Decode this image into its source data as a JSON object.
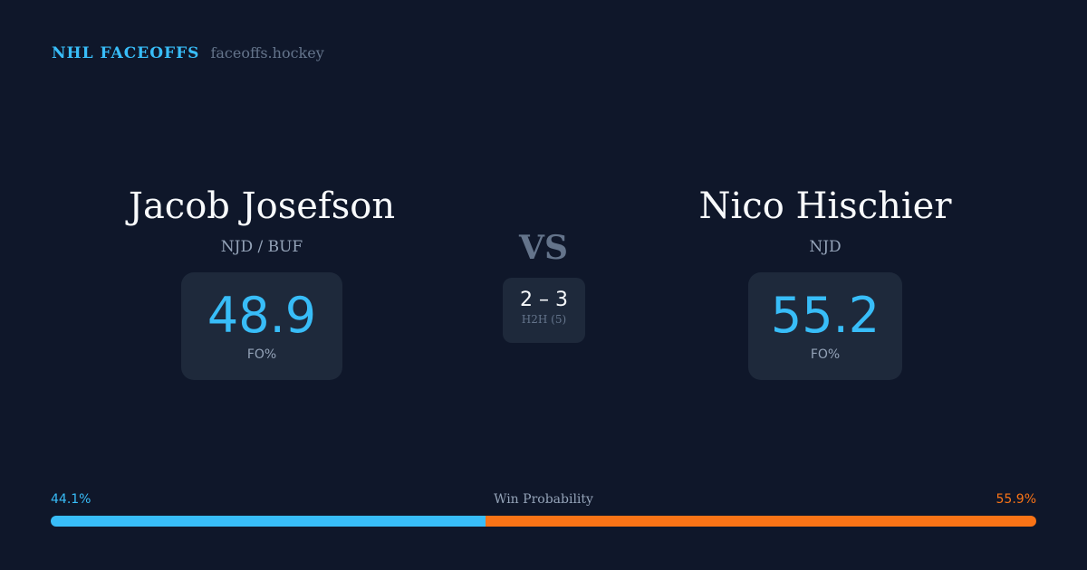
{
  "brand": {
    "title": "NHL FACEOFFS",
    "url": "faceoffs.hockey"
  },
  "player1": {
    "name": "Jacob Josefson",
    "team": "NJD / BUF",
    "fo_pct": "48.9",
    "fo_label": "FO%"
  },
  "player2": {
    "name": "Nico Hischier",
    "team": "NJD",
    "fo_pct": "55.2",
    "fo_label": "FO%"
  },
  "vs": "VS",
  "h2h": {
    "score": "2 – 3",
    "label": "H2H (5)"
  },
  "win_probability": {
    "label": "Win Probability",
    "left": "44.1%",
    "right": "55.9%",
    "left_value": 44.1,
    "right_value": 55.9,
    "left_color": "#38bdf8",
    "right_color": "#f97316"
  }
}
